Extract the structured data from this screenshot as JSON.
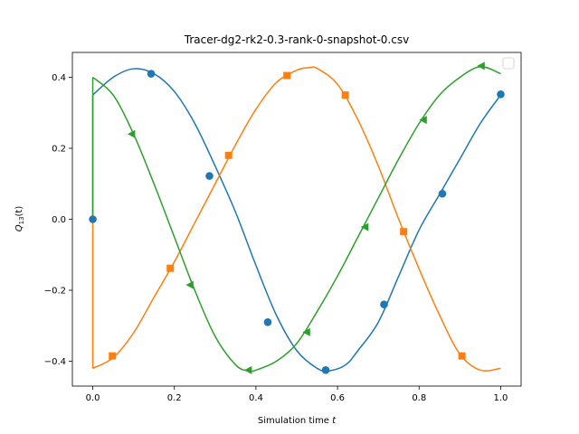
{
  "chart_data": {
    "type": "line",
    "title": "Tracer-dg2-rk2-0.3-rank-0-snapshot-0.csv",
    "xlabel_text": "Simulation time",
    "xlabel_var": "t",
    "ylabel_main": "Q",
    "ylabel_sub": "13",
    "ylabel_tail": "(t)",
    "xlim": [
      -0.05,
      1.05
    ],
    "ylim": [
      -0.47,
      0.47
    ],
    "x_ticks": [
      0.0,
      0.2,
      0.4,
      0.6,
      0.8,
      1.0
    ],
    "x_tick_labels": [
      "0.0",
      "0.2",
      "0.4",
      "0.6",
      "0.8",
      "1.0"
    ],
    "y_ticks": [
      -0.4,
      -0.2,
      0.0,
      0.2,
      0.4
    ],
    "y_tick_labels": [
      "−0.4",
      "−0.2",
      "0.0",
      "0.2",
      "0.4"
    ],
    "grid": false,
    "legend": {
      "placement": "top-right",
      "entries": []
    },
    "series": [
      {
        "color": "#1f77b4",
        "marker": "circle",
        "points": [
          [
            0.0,
            0.35
          ],
          [
            0.05,
            0.4
          ],
          [
            0.1,
            0.424
          ],
          [
            0.15,
            0.41
          ],
          [
            0.2,
            0.36
          ],
          [
            0.25,
            0.27
          ],
          [
            0.3,
            0.15
          ],
          [
            0.35,
            0.02
          ],
          [
            0.4,
            -0.13
          ],
          [
            0.45,
            -0.27
          ],
          [
            0.5,
            -0.37
          ],
          [
            0.55,
            -0.42
          ],
          [
            0.58,
            -0.427
          ],
          [
            0.62,
            -0.41
          ],
          [
            0.65,
            -0.37
          ],
          [
            0.7,
            -0.29
          ],
          [
            0.75,
            -0.16
          ],
          [
            0.8,
            -0.03
          ],
          [
            0.85,
            0.07
          ],
          [
            0.9,
            0.17
          ],
          [
            0.95,
            0.27
          ],
          [
            1.0,
            0.35
          ]
        ],
        "marker_points": [
          [
            0.0,
            0.0
          ],
          [
            0.143,
            0.41
          ],
          [
            0.286,
            0.122
          ],
          [
            0.429,
            -0.29
          ],
          [
            0.571,
            -0.425
          ],
          [
            0.714,
            -0.24
          ],
          [
            0.857,
            0.072
          ],
          [
            1.0,
            0.352
          ]
        ],
        "start_jump": [
          0.0,
          0.0
        ]
      },
      {
        "color": "#ff7f0e",
        "marker": "square",
        "points": [
          [
            0.0,
            -0.42
          ],
          [
            0.05,
            -0.39
          ],
          [
            0.1,
            -0.32
          ],
          [
            0.15,
            -0.22
          ],
          [
            0.2,
            -0.12
          ],
          [
            0.25,
            -0.01
          ],
          [
            0.3,
            0.1
          ],
          [
            0.35,
            0.21
          ],
          [
            0.4,
            0.31
          ],
          [
            0.45,
            0.385
          ],
          [
            0.5,
            0.42
          ],
          [
            0.53,
            0.427
          ],
          [
            0.55,
            0.425
          ],
          [
            0.6,
            0.38
          ],
          [
            0.65,
            0.28
          ],
          [
            0.7,
            0.15
          ],
          [
            0.75,
            0.0
          ],
          [
            0.8,
            -0.14
          ],
          [
            0.85,
            -0.27
          ],
          [
            0.9,
            -0.38
          ],
          [
            0.95,
            -0.425
          ],
          [
            1.0,
            -0.42
          ]
        ],
        "marker_points": [
          [
            0.048,
            -0.385
          ],
          [
            0.19,
            -0.138
          ],
          [
            0.333,
            0.18
          ],
          [
            0.476,
            0.405
          ],
          [
            0.619,
            0.35
          ],
          [
            0.762,
            -0.035
          ],
          [
            0.905,
            -0.385
          ]
        ],
        "start_jump": [
          0.0,
          0.0
        ]
      },
      {
        "color": "#2ca02c",
        "marker": "triangle-left",
        "points": [
          [
            0.0,
            0.4
          ],
          [
            0.05,
            0.35
          ],
          [
            0.1,
            0.24
          ],
          [
            0.15,
            0.1
          ],
          [
            0.2,
            -0.05
          ],
          [
            0.25,
            -0.2
          ],
          [
            0.3,
            -0.33
          ],
          [
            0.35,
            -0.41
          ],
          [
            0.38,
            -0.427
          ],
          [
            0.4,
            -0.425
          ],
          [
            0.45,
            -0.4
          ],
          [
            0.5,
            -0.35
          ],
          [
            0.55,
            -0.26
          ],
          [
            0.6,
            -0.16
          ],
          [
            0.65,
            -0.05
          ],
          [
            0.7,
            0.06
          ],
          [
            0.75,
            0.17
          ],
          [
            0.8,
            0.27
          ],
          [
            0.85,
            0.35
          ],
          [
            0.9,
            0.4
          ],
          [
            0.95,
            0.43
          ],
          [
            1.0,
            0.41
          ]
        ],
        "marker_points": [
          [
            0.095,
            0.24
          ],
          [
            0.238,
            -0.185
          ],
          [
            0.381,
            -0.425
          ],
          [
            0.524,
            -0.318
          ],
          [
            0.667,
            -0.022
          ],
          [
            0.81,
            0.28
          ],
          [
            0.952,
            0.432
          ]
        ],
        "start_jump": [
          0.0,
          0.0
        ]
      }
    ]
  }
}
